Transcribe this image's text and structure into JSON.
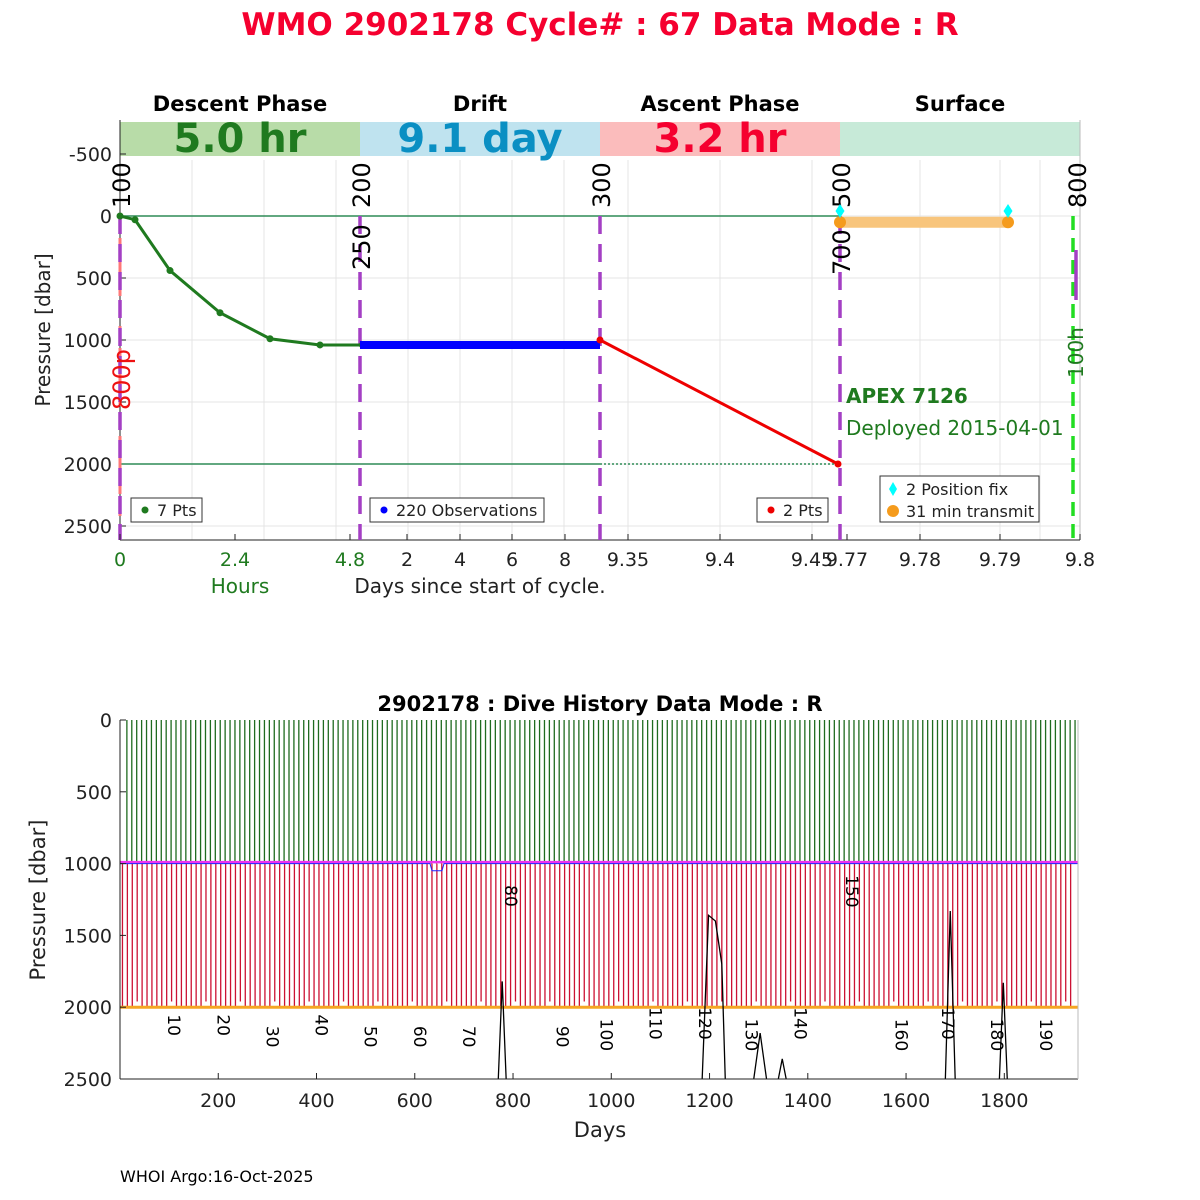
{
  "title": "WMO 2902178   Cycle# : 67   Data Mode : R",
  "footer": "WHOI Argo:16-Oct-2025",
  "colors": {
    "title": "#f5002f",
    "descent": "#1f7a1f",
    "descent_band": "#b8dca8",
    "drift": "#0000ff",
    "drift_text": "#0a8fc3",
    "drift_band": "#bfe3ef",
    "ascent": "#ee0000",
    "ascent_text": "#f5002f",
    "ascent_band": "#fbbcbc",
    "surface_band": "#c7ead8",
    "surface_line": "#f8c57c",
    "fix": "#00ffff",
    "transmit": "#f59b1c",
    "phase_line": "#a43fc4",
    "ref_line": "#2e8b57",
    "green_dash": "#22dd22",
    "red_dash": "#ff7777",
    "float_info": "#1f7a1f",
    "hist_up": "#1f6b1f",
    "hist_down": "#cc1133",
    "hist_drift": "#ee33ee",
    "hist_park": "#2222ff",
    "hist_2000": "#f5a623"
  },
  "cycle_chart": {
    "type": "line",
    "ylabel": "Pressure [dbar]",
    "ylim": [
      2600,
      -700
    ],
    "yticks": [
      -500,
      0,
      500,
      1000,
      1500,
      2000,
      2500
    ],
    "ref_lines": [
      0,
      2000
    ],
    "phases": [
      {
        "name": "Descent Phase",
        "duration": "5.0 hr",
        "legend": "7 Pts",
        "start_label": "100",
        "end_label": "200",
        "xticks": [
          "0",
          "2.4",
          "4.8"
        ],
        "axis_label": "Hours"
      },
      {
        "name": "Drift",
        "duration": "9.1 day",
        "legend": "220 Observations",
        "start_label": "250",
        "end_label": "300",
        "xticks": [
          "2",
          "4",
          "6",
          "8"
        ],
        "axis_label": "Days since start of cycle."
      },
      {
        "name": "Ascent Phase",
        "duration": "3.2 hr",
        "legend": "2 Pts",
        "start_label": "",
        "end_label": "500",
        "xticks": [
          "9.35",
          "9.4",
          "9.45"
        ]
      },
      {
        "name": "Surface",
        "duration": "",
        "legend": "",
        "start_label": "700",
        "end_label": "800",
        "xticks": [
          "9.77",
          "9.78",
          "9.79",
          "9.8"
        ]
      }
    ],
    "side_labels": {
      "left_red": "800p",
      "right_green": "100h"
    },
    "descent_points": {
      "hours": [
        0,
        0.3,
        1.0,
        2.0,
        3.0,
        4.0,
        4.85
      ],
      "pressure": [
        0,
        30,
        440,
        780,
        990,
        1040,
        1040
      ]
    },
    "drift": {
      "days": [
        0.2,
        9.3
      ],
      "pressure": [
        1040,
        1040
      ]
    },
    "ascent_points": {
      "days": [
        9.3,
        9.465
      ],
      "pressure": [
        1000,
        2000
      ]
    },
    "surface": {
      "days": [
        9.77,
        9.791
      ],
      "pressure": 50,
      "fix_days": [
        9.77,
        9.791
      ],
      "fix_pressure": -40
    },
    "float_info": {
      "model": "APEX 7126",
      "deployed": "Deployed 2015-04-01"
    },
    "surface_legend": {
      "fix": "2 Position fix",
      "transmit": "31 min transmit"
    }
  },
  "history_chart": {
    "type": "line",
    "title": "2902178 : Dive History      Data Mode : R",
    "xlabel": "Days",
    "ylabel": "Pressure [dbar]",
    "xlim": [
      0,
      1950
    ],
    "ylim": [
      0,
      2500
    ],
    "xticks": [
      200,
      400,
      600,
      800,
      1000,
      1200,
      1400,
      1600,
      1800
    ],
    "yticks": [
      0,
      500,
      1000,
      1500,
      2000,
      2500
    ],
    "cycle_interval_days": 10,
    "n_cycles": 194,
    "cycle_labels": [
      {
        "label": "10",
        "day": 90,
        "pressure": 2050
      },
      {
        "label": "20",
        "day": 190,
        "pressure": 2050
      },
      {
        "label": "30",
        "day": 290,
        "pressure": 2130
      },
      {
        "label": "40",
        "day": 390,
        "pressure": 2050
      },
      {
        "label": "50",
        "day": 490,
        "pressure": 2130
      },
      {
        "label": "60",
        "day": 590,
        "pressure": 2130
      },
      {
        "label": "70",
        "day": 690,
        "pressure": 2130
      },
      {
        "label": "80",
        "day": 775,
        "pressure": 1150
      },
      {
        "label": "90",
        "day": 880,
        "pressure": 2130
      },
      {
        "label": "100",
        "day": 970,
        "pressure": 2080
      },
      {
        "label": "110",
        "day": 1070,
        "pressure": 2000
      },
      {
        "label": "120",
        "day": 1170,
        "pressure": 2000
      },
      {
        "label": "130",
        "day": 1265,
        "pressure": 2080
      },
      {
        "label": "140",
        "day": 1365,
        "pressure": 2000
      },
      {
        "label": "150",
        "day": 1470,
        "pressure": 1080
      },
      {
        "label": "160",
        "day": 1570,
        "pressure": 2080
      },
      {
        "label": "170",
        "day": 1665,
        "pressure": 2000
      },
      {
        "label": "180",
        "day": 1765,
        "pressure": 2080
      },
      {
        "label": "190",
        "day": 1865,
        "pressure": 2080
      }
    ],
    "black_trace": [
      [
        770,
        2500
      ],
      [
        778,
        1820
      ],
      [
        786,
        2500
      ],
      [
        1185,
        2500
      ],
      [
        1198,
        1360
      ],
      [
        1212,
        1400
      ],
      [
        1225,
        1700
      ],
      [
        1232,
        2500
      ],
      [
        1290,
        2500
      ],
      [
        1303,
        2180
      ],
      [
        1316,
        2500
      ],
      [
        1340,
        2500
      ],
      [
        1348,
        2360
      ],
      [
        1356,
        2500
      ],
      [
        1680,
        2500
      ],
      [
        1690,
        1330
      ],
      [
        1700,
        2500
      ],
      [
        1790,
        2500
      ],
      [
        1798,
        1830
      ],
      [
        1806,
        2500
      ]
    ]
  }
}
